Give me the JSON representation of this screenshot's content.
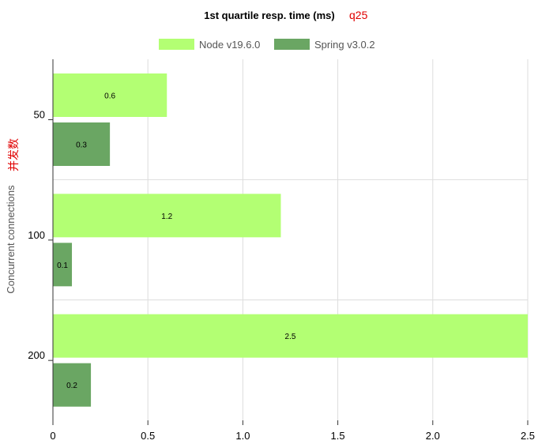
{
  "chart_data": {
    "type": "bar",
    "orientation": "horizontal",
    "title": "1st quartile resp. time (ms)",
    "title_annotation": "q25",
    "ylabel": "Concurrent connections",
    "ylabel_annotation": "并发数",
    "xlabel": "",
    "categories": [
      "50",
      "100",
      "200"
    ],
    "series": [
      {
        "name": "Node v19.6.0",
        "values": [
          0.6,
          1.2,
          2.5
        ],
        "color": "#b3ff73"
      },
      {
        "name": "Spring v3.0.2",
        "values": [
          0.3,
          0.1,
          0.2
        ],
        "color": "#6aa663"
      }
    ],
    "xlim": [
      0,
      2.5
    ],
    "xticks": [
      "0",
      "0.5",
      "1.0",
      "1.5",
      "2.0",
      "2.5"
    ],
    "grid": true,
    "legend_position": "top",
    "annotation_color": "#e00000"
  }
}
